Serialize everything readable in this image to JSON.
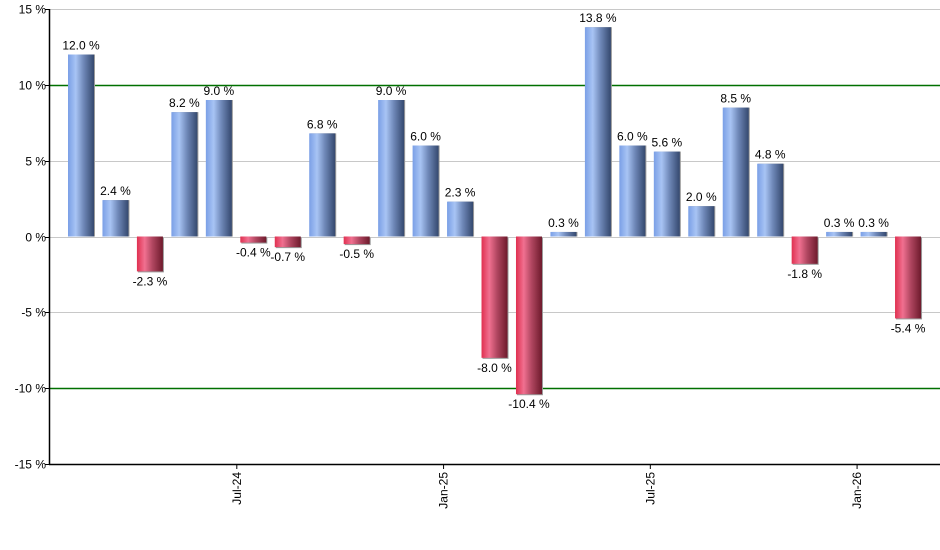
{
  "chart_data": {
    "type": "bar",
    "title": "",
    "xlabel": "",
    "ylabel": "",
    "ylim": [
      -15,
      15
    ],
    "y_ticks": [
      15,
      10,
      5,
      0,
      -5,
      -10,
      -15
    ],
    "y_tick_labels": [
      "15 %",
      "10 %",
      "5 %",
      "0 %",
      "-5 %",
      "-10 %",
      "-15 %"
    ],
    "highlight_lines": [
      10,
      -10
    ],
    "grid": true,
    "legend": null,
    "x_tick_labels": [
      {
        "label": "Jul-24",
        "after_bar_index": 5
      },
      {
        "label": "Jan-25",
        "after_bar_index": 11
      },
      {
        "label": "Jul-25",
        "after_bar_index": 17
      },
      {
        "label": "Jan-26",
        "after_bar_index": 23
      }
    ],
    "values": [
      12.0,
      2.4,
      -2.3,
      8.2,
      9.0,
      -0.4,
      -0.7,
      6.8,
      -0.5,
      9.0,
      6.0,
      2.3,
      -8.0,
      -10.4,
      0.3,
      13.8,
      6.0,
      5.6,
      2.0,
      8.5,
      4.8,
      -1.8,
      0.3,
      0.3,
      -5.4
    ],
    "value_labels": [
      "12.0 %",
      "2.4 %",
      "-2.3 %",
      "8.2 %",
      "9.0 %",
      "-0.4 %",
      "-0.7 %",
      "6.8 %",
      "-0.5 %",
      "9.0 %",
      "6.0 %",
      "2.3 %",
      "-8.0 %",
      "-10.4 %",
      "0.3 %",
      "13.8 %",
      "6.0 %",
      "5.6 %",
      "2.0 %",
      "8.5 %",
      "4.8 %",
      "-1.8 %",
      "0.3 %",
      "0.3 %",
      "-5.4 %"
    ]
  },
  "colors": {
    "positive_light": "#a8c4f4",
    "positive_mid": "#7a9fe6",
    "positive_dark": "#34486e",
    "negative_light": "#f07090",
    "negative_mid": "#e03050",
    "negative_dark": "#6e1a2c",
    "grid": "#c8c8c8",
    "highlight_line": "#007000",
    "axis": "#000000"
  }
}
